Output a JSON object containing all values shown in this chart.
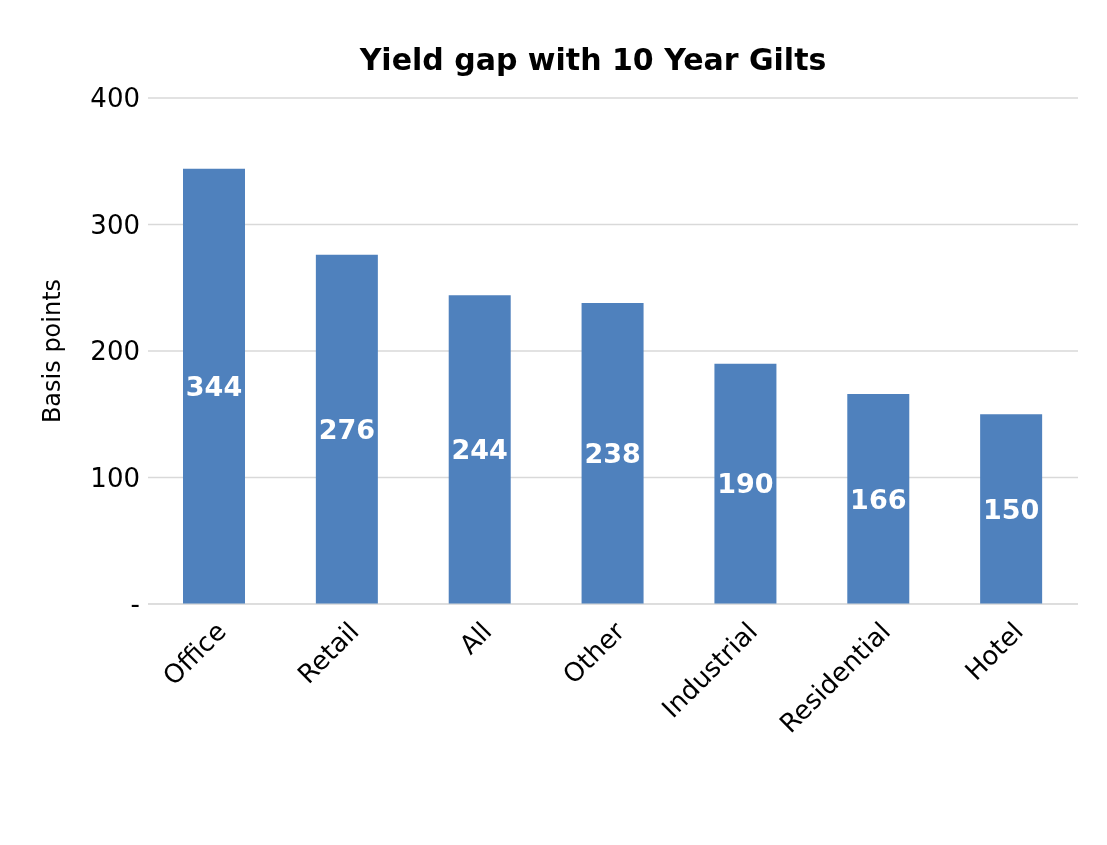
{
  "chart_data": {
    "type": "bar",
    "title": "Yield gap with 10 Year Gilts",
    "ylabel": "Basis points",
    "categories": [
      "Office",
      "Retail",
      "All",
      "Other",
      "Industrial",
      "Residential",
      "Hotel"
    ],
    "values": [
      344,
      276,
      244,
      238,
      190,
      166,
      150
    ],
    "color": "#4f81bd",
    "ylim": [
      0,
      400
    ],
    "yticks": [
      {
        "value": 0,
        "label": "-"
      },
      100,
      200,
      300,
      400
    ],
    "grid": "y",
    "data_labels": true
  }
}
